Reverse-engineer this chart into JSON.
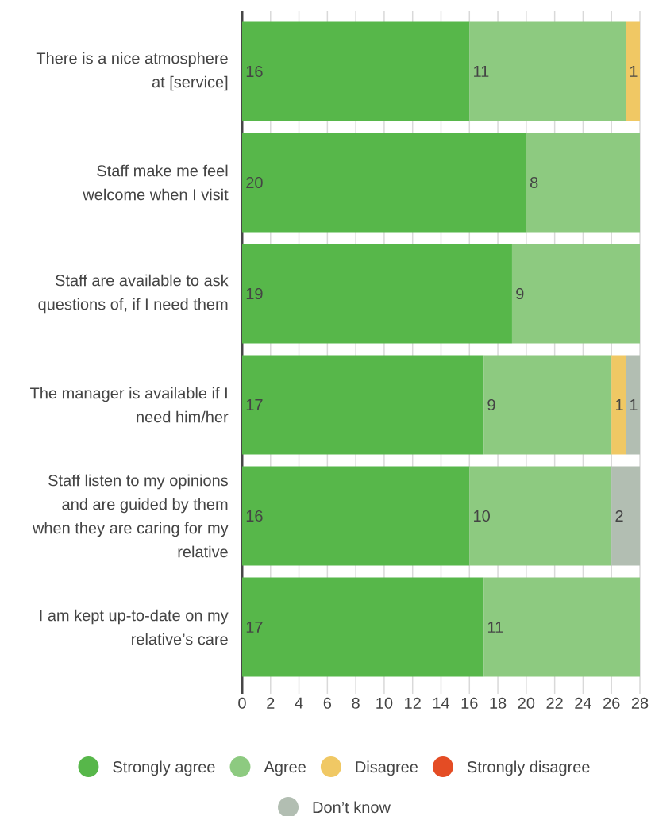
{
  "chart_data": {
    "type": "bar",
    "orientation": "horizontal",
    "stacked": true,
    "categories": [
      "There is a nice atmosphere at [service]",
      "Staff make me feel welcome when I visit",
      "Staff are available to ask questions of, if I need them",
      "The manager is available if I need him/her",
      "Staff listen to my opinions and are guided by them when they are caring for my relative",
      "I am kept up-to-date on my relative’s care"
    ],
    "series": [
      {
        "name": "Strongly agree",
        "color": "#57b74a",
        "values": [
          16,
          20,
          19,
          17,
          16,
          17
        ],
        "value_labels": [
          "16",
          "20",
          "19",
          "17",
          "16",
          "17"
        ]
      },
      {
        "name": "Agree",
        "color": "#8dca80",
        "values": [
          11,
          8,
          9,
          9,
          10,
          11
        ],
        "value_labels": [
          "11",
          "8",
          "9",
          "9",
          "10",
          "11"
        ]
      },
      {
        "name": "Disagree",
        "color": "#f0c864",
        "values": [
          1,
          0,
          0,
          1,
          0,
          0
        ],
        "value_labels": [
          "1",
          null,
          null,
          "1",
          null,
          null
        ]
      },
      {
        "name": "Strongly disagree",
        "color": "#e44c24",
        "values": [
          0,
          0,
          0,
          0,
          0,
          0
        ],
        "value_labels": [
          null,
          null,
          null,
          null,
          null,
          null
        ]
      },
      {
        "name": "Don’t know",
        "color": "#b2beb2",
        "values": [
          0,
          0,
          0,
          1,
          2,
          0
        ],
        "value_labels": [
          null,
          null,
          null,
          "1",
          "2",
          null
        ]
      }
    ],
    "xlim": [
      0,
      28
    ],
    "xticks": [
      0,
      2,
      4,
      6,
      8,
      10,
      12,
      14,
      16,
      18,
      20,
      22,
      24,
      26,
      28
    ],
    "grid": "x",
    "legend": "bottom"
  }
}
